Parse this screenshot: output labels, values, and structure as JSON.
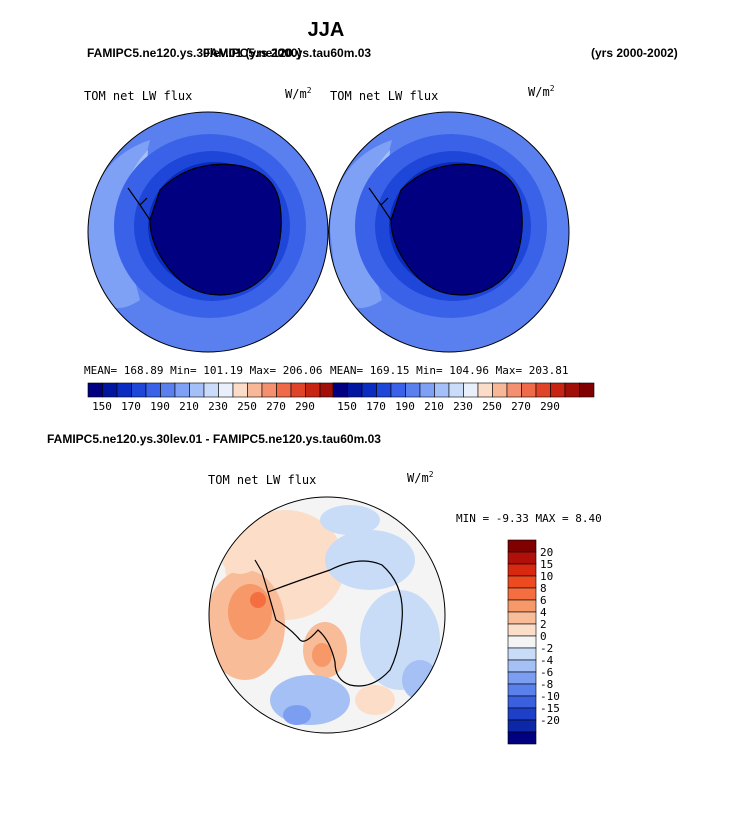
{
  "page": {
    "title": "JJA",
    "header_left_a": "FAMIPC5.ne120.ys.30lev.01 (yrs 2000)",
    "header_left_b": "FAMIPC5.ne120.ys.tau60m.03",
    "header_right": "(yrs 2000-2002)"
  },
  "colors": {
    "blue_scale": [
      "#000080",
      "#0016a0",
      "#0a2cc0",
      "#1e46d8",
      "#3a62e8",
      "#5a80f0",
      "#7ea0f5",
      "#a5c0f8",
      "#cadcfa",
      "#eaf0fb",
      "#fbdcc8",
      "#f8b898",
      "#f49070",
      "#ee6a48",
      "#e04428",
      "#c82414",
      "#a01008",
      "#800000"
    ],
    "diff_scale": [
      "#800000",
      "#b01008",
      "#d82810",
      "#ee4a20",
      "#f46e40",
      "#f79868",
      "#f9bc98",
      "#fbddc8",
      "#f4f4f4",
      "#c8dcf8",
      "#a4c0f4",
      "#7c9ef0",
      "#5a80ec",
      "#3a60e0",
      "#1e40c8",
      "#0c28a8",
      "#000080"
    ]
  },
  "panels": [
    {
      "variable": "TOM net LW flux",
      "units_base": "W/m",
      "units_sup": "2",
      "stats": {
        "mean_label": "MEAN=",
        "mean": "168.89",
        "min_label": "Min=",
        "min": "101.19",
        "max_label": "Max=",
        "max": "206.06"
      }
    },
    {
      "variable": "TOM net LW flux",
      "units_base": "W/m",
      "units_sup": "2",
      "stats": {
        "mean_label": "MEAN=",
        "mean": "169.15",
        "min_label": "Min=",
        "min": "104.96",
        "max_label": "Max=",
        "max": "203.81"
      }
    }
  ],
  "colorbar_top": {
    "tick_labels": [
      "150",
      "170",
      "190",
      "210",
      "230",
      "250",
      "270",
      "290"
    ]
  },
  "diff_panel": {
    "title": "FAMIPC5.ne120.ys.30lev.01 - FAMIPC5.ne120.ys.tau60m.03",
    "variable": "TOM net LW flux",
    "units_base": "W/m",
    "units_sup": "2",
    "min_label": "MIN =",
    "min": "-9.33",
    "max_label": "MAX =",
    "max": "8.40"
  },
  "colorbar_diff": {
    "tick_labels": [
      "20",
      "15",
      "10",
      "8",
      "6",
      "4",
      "2",
      "0",
      "-2",
      "-4",
      "-6",
      "-8",
      "-10",
      "-15",
      "-20"
    ]
  },
  "chart_data": [
    {
      "type": "heatmap",
      "title": "TOM net LW flux",
      "subtitle": "FAMIPC5.ne120.ys.30lev.01 (yrs 2000)",
      "units": "W/m2",
      "projection": "south polar stereographic",
      "colorbar_levels": [
        150,
        160,
        170,
        180,
        190,
        200,
        210,
        220,
        230,
        240,
        250,
        260,
        270,
        280,
        290
      ],
      "mean": 168.89,
      "min": 101.19,
      "max": 206.06
    },
    {
      "type": "heatmap",
      "title": "TOM net LW flux",
      "subtitle": "FAMIPC5.ne120.ys.tau60m.03 (yrs 2000-2002)",
      "units": "W/m2",
      "projection": "south polar stereographic",
      "colorbar_levels": [
        150,
        160,
        170,
        180,
        190,
        200,
        210,
        220,
        230,
        240,
        250,
        260,
        270,
        280,
        290
      ],
      "mean": 169.15,
      "min": 104.96,
      "max": 203.81
    },
    {
      "type": "heatmap",
      "title": "TOM net LW flux",
      "subtitle": "FAMIPC5.ne120.ys.30lev.01 - FAMIPC5.ne120.ys.tau60m.03",
      "units": "W/m2",
      "projection": "south polar stereographic",
      "colorbar_levels": [
        -20,
        -15,
        -10,
        -8,
        -6,
        -4,
        -2,
        0,
        2,
        4,
        6,
        8,
        10,
        15,
        20
      ],
      "min": -9.33,
      "max": 8.4
    }
  ]
}
